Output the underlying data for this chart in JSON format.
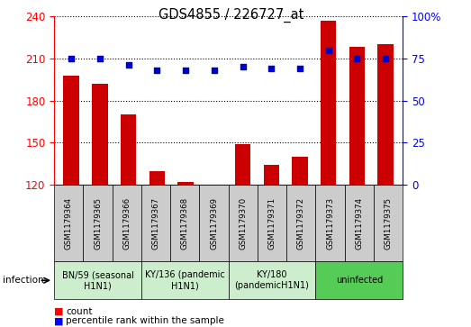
{
  "title": "GDS4855 / 226727_at",
  "samples": [
    "GSM1179364",
    "GSM1179365",
    "GSM1179366",
    "GSM1179367",
    "GSM1179368",
    "GSM1179369",
    "GSM1179370",
    "GSM1179371",
    "GSM1179372",
    "GSM1179373",
    "GSM1179374",
    "GSM1179375"
  ],
  "counts": [
    198,
    192,
    170,
    130,
    122,
    120,
    149,
    134,
    140,
    237,
    218,
    220
  ],
  "percentiles": [
    75,
    75,
    71,
    68,
    68,
    68,
    70,
    69,
    69,
    80,
    75,
    75
  ],
  "ylim_left": [
    120,
    240
  ],
  "ylim_right": [
    0,
    100
  ],
  "yticks_left": [
    120,
    150,
    180,
    210,
    240
  ],
  "yticks_right": [
    0,
    25,
    50,
    75,
    100
  ],
  "groups": [
    {
      "label": "BN/59 (seasonal\nH1N1)",
      "start": 0,
      "end": 3,
      "color": "#cceecc"
    },
    {
      "label": "KY/136 (pandemic\nH1N1)",
      "start": 3,
      "end": 6,
      "color": "#cceecc"
    },
    {
      "label": "KY/180\n(pandemicH1N1)",
      "start": 6,
      "end": 9,
      "color": "#cceecc"
    },
    {
      "label": "uninfected",
      "start": 9,
      "end": 12,
      "color": "#55cc55"
    }
  ],
  "bar_color": "#cc0000",
  "dot_color": "#0000cc",
  "tick_box_color": "#cccccc",
  "infection_label": "infection"
}
